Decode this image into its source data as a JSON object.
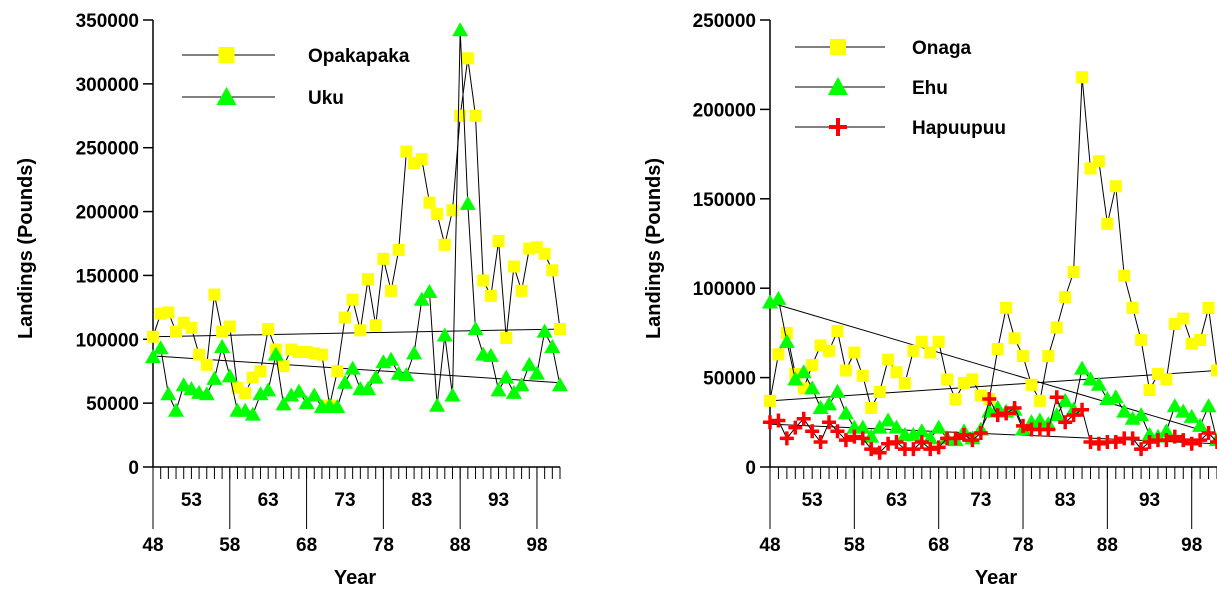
{
  "chart_data": [
    {
      "type": "line",
      "xlabel": "Year",
      "ylabel": "Landings (Pounds)",
      "ylim": [
        0,
        350000
      ],
      "yticks": [
        0,
        50000,
        100000,
        150000,
        200000,
        250000,
        300000,
        350000
      ],
      "ytick_labels": [
        "0",
        "50000",
        "100000",
        "150000",
        "200000",
        "250000",
        "300000",
        "350000"
      ],
      "xlim": [
        48,
        101
      ],
      "xticks_lower": [
        48,
        58,
        68,
        78,
        88,
        98
      ],
      "xtick_labels_lower": [
        "48",
        "58",
        "68",
        "78",
        "88",
        "98"
      ],
      "xticks_upper": [
        53,
        63,
        73,
        83,
        93
      ],
      "xtick_labels_upper": [
        "53",
        "63",
        "73",
        "83",
        "93"
      ],
      "legend_position": "top-left",
      "x": [
        48,
        49,
        50,
        51,
        52,
        53,
        54,
        55,
        56,
        57,
        58,
        59,
        60,
        61,
        62,
        63,
        64,
        65,
        66,
        67,
        68,
        69,
        70,
        71,
        72,
        73,
        74,
        75,
        76,
        77,
        78,
        79,
        80,
        81,
        82,
        83,
        84,
        85,
        86,
        87,
        88,
        89,
        90,
        91,
        92,
        93,
        94,
        95,
        96,
        97,
        98,
        99,
        100,
        101
      ],
      "series": [
        {
          "name": "Opakapaka",
          "color": "#ffff00",
          "marker": "square",
          "values": [
            102000,
            120000,
            121000,
            106000,
            113000,
            109000,
            88000,
            80000,
            135000,
            106000,
            110000,
            62000,
            58000,
            70000,
            75000,
            108000,
            92000,
            79000,
            92000,
            90000,
            90000,
            89000,
            88000,
            48000,
            75000,
            117000,
            131000,
            107000,
            147000,
            111000,
            163000,
            138000,
            170000,
            247000,
            238000,
            241000,
            207000,
            198000,
            174000,
            201000,
            275000,
            320000,
            275000,
            146000,
            134000,
            177000,
            101000,
            157000,
            138000,
            171000,
            172000,
            167000,
            154000,
            108000
          ]
        },
        {
          "name": "Uku",
          "color": "#00ff00",
          "marker": "triangle",
          "values": [
            86000,
            93000,
            57000,
            44000,
            64000,
            61000,
            58000,
            57000,
            69000,
            94000,
            71000,
            44000,
            44000,
            41000,
            57000,
            60000,
            88000,
            49000,
            56000,
            59000,
            50000,
            56000,
            47000,
            48000,
            47000,
            66000,
            77000,
            61000,
            61000,
            70000,
            82000,
            84000,
            73000,
            72000,
            89000,
            131000,
            137000,
            48000,
            103000,
            56000,
            342000,
            206000,
            108000,
            88000,
            87000,
            60000,
            70000,
            58000,
            64000,
            80000,
            73000,
            106000,
            94000,
            64000
          ]
        }
      ],
      "trend_lines": [
        {
          "series": "Opakapaka",
          "start": [
            48,
            102000
          ],
          "end": [
            101,
            108000
          ]
        },
        {
          "series": "Uku",
          "start": [
            48,
            87000
          ],
          "end": [
            101,
            66000
          ]
        }
      ]
    },
    {
      "type": "line",
      "xlabel": "Year",
      "ylabel": "Landings (Pounds)",
      "ylim": [
        0,
        250000
      ],
      "yticks": [
        0,
        50000,
        100000,
        150000,
        200000,
        250000
      ],
      "ytick_labels": [
        "0",
        "50000",
        "100000",
        "150000",
        "200000",
        "250000"
      ],
      "xlim": [
        48,
        101
      ],
      "xticks_lower": [
        48,
        58,
        68,
        78,
        88,
        98
      ],
      "xtick_labels_lower": [
        "48",
        "58",
        "68",
        "78",
        "88",
        "98"
      ],
      "xticks_upper": [
        53,
        63,
        73,
        83,
        93
      ],
      "xtick_labels_upper": [
        "53",
        "63",
        "73",
        "83",
        "93"
      ],
      "legend_position": "top-left",
      "x": [
        48,
        49,
        50,
        51,
        52,
        53,
        54,
        55,
        56,
        57,
        58,
        59,
        60,
        61,
        62,
        63,
        64,
        65,
        66,
        67,
        68,
        69,
        70,
        71,
        72,
        73,
        74,
        75,
        76,
        77,
        78,
        79,
        80,
        81,
        82,
        83,
        84,
        85,
        86,
        87,
        88,
        89,
        90,
        91,
        92,
        93,
        94,
        95,
        96,
        97,
        98,
        99,
        100,
        101
      ],
      "series": [
        {
          "name": "Onaga",
          "color": "#ffff00",
          "marker": "square",
          "values": [
            37000,
            63000,
            75000,
            52000,
            44000,
            57000,
            68000,
            65000,
            76000,
            54000,
            64000,
            51000,
            33000,
            42000,
            60000,
            53000,
            47000,
            65000,
            70000,
            64000,
            70000,
            49000,
            38000,
            47000,
            49000,
            40000,
            38000,
            66000,
            89000,
            72000,
            62000,
            46000,
            37000,
            62000,
            78000,
            95000,
            109000,
            218000,
            167000,
            171000,
            136000,
            157000,
            107000,
            89000,
            71000,
            43000,
            52000,
            49000,
            80000,
            83000,
            69000,
            71000,
            89000,
            54000
          ]
        },
        {
          "name": "Ehu",
          "color": "#00ff00",
          "marker": "triangle",
          "values": [
            92000,
            94000,
            70000,
            49000,
            53000,
            44000,
            33000,
            35000,
            42000,
            30000,
            22000,
            22000,
            17000,
            22000,
            26000,
            22000,
            18000,
            18000,
            20000,
            16000,
            22000,
            16000,
            15000,
            20000,
            16000,
            21000,
            31000,
            33000,
            31000,
            32000,
            21000,
            25000,
            26000,
            24000,
            29000,
            37000,
            32000,
            55000,
            49000,
            46000,
            38000,
            39000,
            31000,
            27000,
            29000,
            18000,
            17000,
            20000,
            34000,
            31000,
            28000,
            23000,
            34000,
            15000
          ]
        },
        {
          "name": "Hapuupuu",
          "color": "#ff0000",
          "marker": "plus",
          "values": [
            25000,
            26000,
            16000,
            22000,
            27000,
            20000,
            14000,
            25000,
            20000,
            15000,
            17000,
            16000,
            10000,
            8000,
            13000,
            14000,
            10000,
            10000,
            14000,
            10000,
            11000,
            16000,
            16000,
            18000,
            15000,
            19000,
            38000,
            29000,
            30000,
            33000,
            23000,
            21000,
            21000,
            21000,
            39000,
            25000,
            29000,
            32000,
            14000,
            13000,
            14000,
            14000,
            16000,
            16000,
            10000,
            14000,
            15000,
            15000,
            17000,
            15000,
            13000,
            15000,
            19000,
            14000
          ]
        }
      ],
      "trend_lines": [
        {
          "series": "Onaga",
          "start": [
            48,
            37000
          ],
          "end": [
            101,
            54000
          ]
        },
        {
          "series": "Ehu",
          "start": [
            48,
            92000
          ],
          "end": [
            101,
            18000
          ]
        },
        {
          "series": "Hapuupuu",
          "start": [
            48,
            24000
          ],
          "end": [
            101,
            13000
          ]
        }
      ]
    }
  ]
}
